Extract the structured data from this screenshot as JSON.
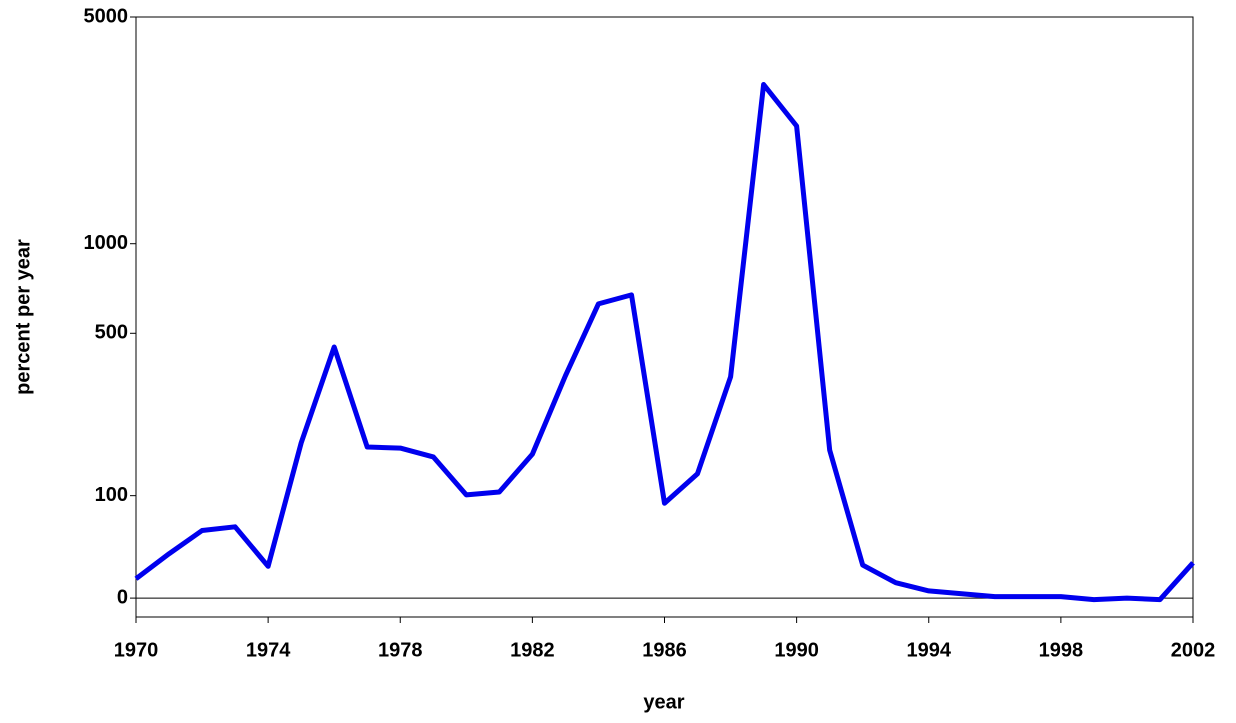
{
  "chart_data": {
    "type": "line",
    "x_label": "year",
    "y_label": "percent per year",
    "yscale": "log1p_percent",
    "x": [
      1970,
      1971,
      1972,
      1973,
      1974,
      1975,
      1976,
      1977,
      1978,
      1979,
      1980,
      1981,
      1982,
      1983,
      1984,
      1985,
      1986,
      1987,
      1988,
      1989,
      1990,
      1991,
      1992,
      1993,
      1994,
      1995,
      1996,
      1997,
      1998,
      1999,
      2000,
      2001,
      2002
    ],
    "series": [
      {
        "color": "#0000ee",
        "values": [
          14,
          35,
          58,
          62,
          24,
          186,
          447,
          178,
          176,
          160,
          101,
          105,
          165,
          350,
          632,
          678,
          90,
          132,
          347,
          3130,
          2340,
          172,
          25,
          11,
          5,
          3,
          1,
          1,
          1,
          -1,
          0,
          -1,
          27
        ]
      }
    ],
    "xlim": [
      1970,
      2002
    ],
    "xticks": [
      1970,
      1974,
      1978,
      1982,
      1986,
      1990,
      1994,
      1998,
      2002
    ],
    "ylim": [
      -12,
      5000
    ],
    "yticks": [
      0,
      100,
      500,
      1000,
      5000
    ]
  }
}
